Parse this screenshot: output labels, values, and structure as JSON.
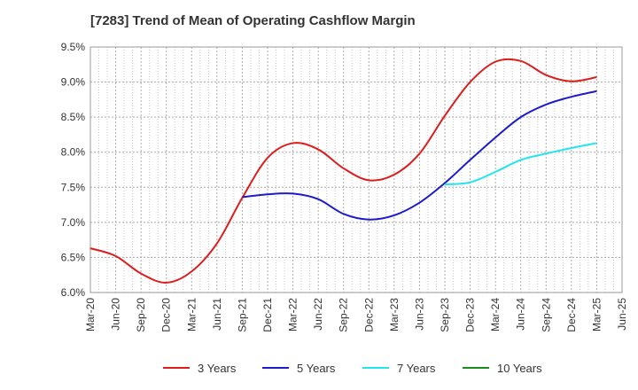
{
  "chart_data": {
    "type": "line",
    "title": "[7283]  Trend of Mean of Operating Cashflow Margin",
    "xlabel": "",
    "ylabel": "",
    "ylim": [
      6.0,
      9.5
    ],
    "y_ticks": [
      "6.0%",
      "6.5%",
      "7.0%",
      "7.5%",
      "8.0%",
      "8.5%",
      "9.0%",
      "9.5%"
    ],
    "x_ticks": [
      "Mar-20",
      "Jun-20",
      "Sep-20",
      "Dec-20",
      "Mar-21",
      "Jun-21",
      "Sep-21",
      "Dec-21",
      "Mar-22",
      "Jun-22",
      "Sep-22",
      "Dec-22",
      "Mar-23",
      "Jun-23",
      "Sep-23",
      "Dec-23",
      "Mar-24",
      "Jun-24",
      "Sep-24",
      "Dec-24",
      "Mar-25",
      "Jun-25"
    ],
    "grid": true,
    "legend_position": "bottom",
    "series": [
      {
        "name": "3 Years",
        "color": "#dd1c1c",
        "values": [
          6.63,
          6.52,
          6.27,
          6.14,
          6.3,
          6.7,
          7.35,
          7.92,
          8.13,
          8.04,
          7.77,
          7.6,
          7.68,
          7.98,
          8.52,
          9.0,
          9.29,
          9.3,
          9.1,
          9.01,
          9.07,
          null
        ]
      },
      {
        "name": "5 Years",
        "color": "#1c1ccc",
        "values": [
          null,
          null,
          null,
          null,
          null,
          null,
          7.36,
          7.4,
          7.41,
          7.33,
          7.12,
          7.04,
          7.1,
          7.28,
          7.56,
          7.89,
          8.21,
          8.5,
          8.68,
          8.79,
          8.87,
          null
        ]
      },
      {
        "name": "7 Years",
        "color": "#22e5ee",
        "values": [
          null,
          null,
          null,
          null,
          null,
          null,
          null,
          null,
          null,
          null,
          null,
          null,
          null,
          null,
          7.54,
          7.57,
          7.72,
          7.89,
          7.98,
          8.06,
          8.13,
          null
        ]
      },
      {
        "name": "10 Years",
        "color": "#1a8a1a",
        "values": [
          null,
          null,
          null,
          null,
          null,
          null,
          null,
          null,
          null,
          null,
          null,
          null,
          null,
          null,
          null,
          null,
          null,
          null,
          null,
          null,
          null,
          null
        ]
      }
    ]
  }
}
